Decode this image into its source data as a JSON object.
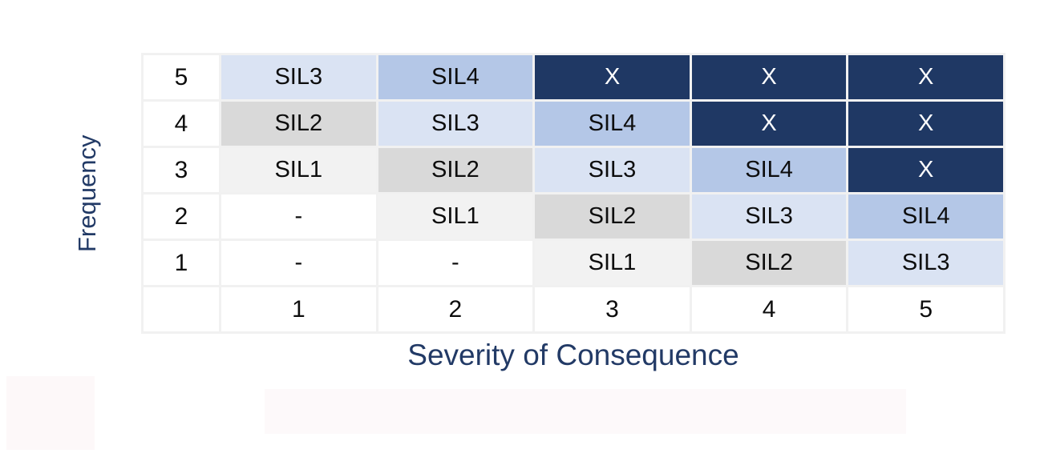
{
  "colors": {
    "X": {
      "bg": "#1F3864",
      "text": "#FFFFFF"
    },
    "SIL4": {
      "bg": "#B4C7E7",
      "text": "#0D0D0D"
    },
    "SIL3": {
      "bg": "#DAE3F3",
      "text": "#0D0D0D"
    },
    "SIL2": {
      "bg": "#D9D9D9",
      "text": "#0D0D0D"
    },
    "SIL1": {
      "bg": "#F2F2F2",
      "text": "#0D0D0D"
    },
    "-": {
      "bg": "#FFFFFF",
      "text": "#0D0D0D"
    }
  },
  "chart_data": {
    "type": "heatmap",
    "title": "",
    "xlabel": "Severity of Consequence",
    "ylabel": "Frequency",
    "x_ticks": [
      "1",
      "2",
      "3",
      "4",
      "5"
    ],
    "y_ticks": [
      "5",
      "4",
      "3",
      "2",
      "1"
    ],
    "values": [
      [
        "SIL3",
        "SIL4",
        "X",
        "X",
        "X"
      ],
      [
        "SIL2",
        "SIL3",
        "SIL4",
        "X",
        "X"
      ],
      [
        "SIL1",
        "SIL2",
        "SIL3",
        "SIL4",
        "X"
      ],
      [
        "-",
        "SIL1",
        "SIL2",
        "SIL3",
        "SIL4"
      ],
      [
        "-",
        "-",
        "SIL1",
        "SIL2",
        "SIL3"
      ]
    ],
    "cell_color_legend": {
      "X": "#1F3864",
      "SIL4": "#B4C7E7",
      "SIL3": "#DAE3F3",
      "SIL2": "#D9D9D9",
      "SIL1": "#F2F2F2",
      "-": "#FFFFFF"
    },
    "layout": {
      "grid": true,
      "legend_position": "none",
      "axis_label_color": "#223A66"
    }
  }
}
